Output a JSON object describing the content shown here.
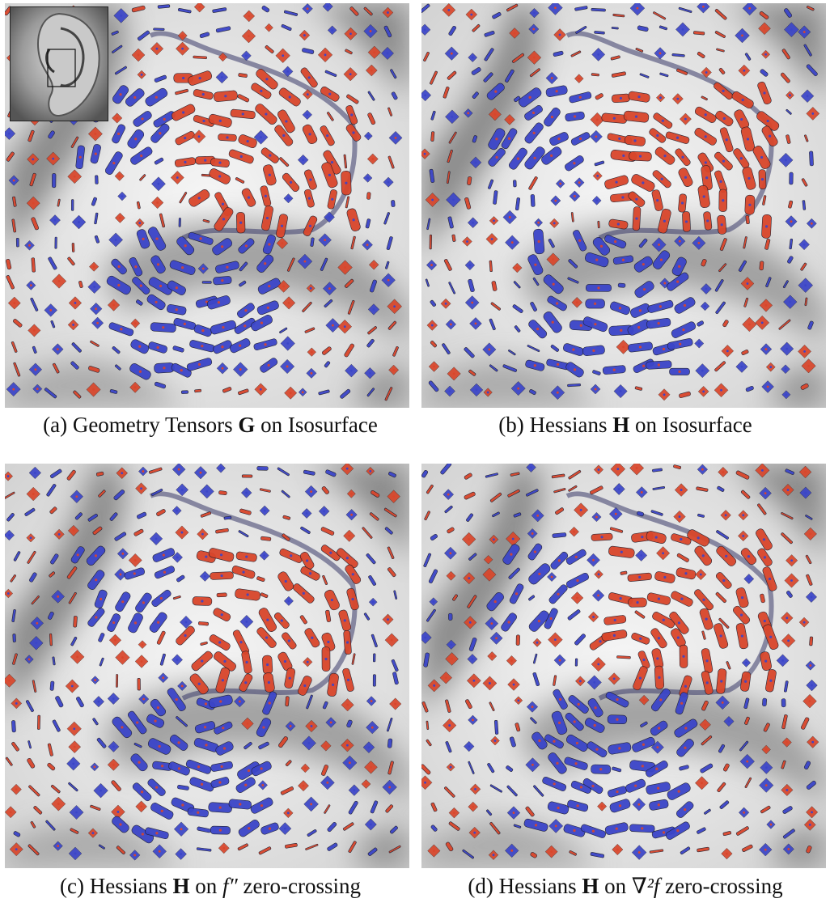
{
  "figure": {
    "panels": [
      {
        "id": "a",
        "label": "(a)",
        "caption_pre": "Geometry Tensors ",
        "caption_bold": "G",
        "caption_post": " on Isosurface",
        "caption_math": "",
        "caption_tail": ""
      },
      {
        "id": "b",
        "label": "(b)",
        "caption_pre": "Hessians ",
        "caption_bold": "H",
        "caption_post": " on Isosurface",
        "caption_math": "",
        "caption_tail": ""
      },
      {
        "id": "c",
        "label": "(c)",
        "caption_pre": "Hessians ",
        "caption_bold": "H",
        "caption_post": " on ",
        "caption_math": "f″",
        "caption_tail": " zero-crossing"
      },
      {
        "id": "d",
        "label": "(d)",
        "caption_pre": "Hessians ",
        "caption_bold": "H",
        "caption_post": " on ",
        "caption_math": "∇²f",
        "caption_tail": " zero-crossing"
      }
    ],
    "colors": {
      "glyph_red": "#d9462b",
      "glyph_blue": "#3b45c8",
      "surface_light": "#f6f6f6",
      "surface_shadow": "#6e6e6e"
    }
  }
}
